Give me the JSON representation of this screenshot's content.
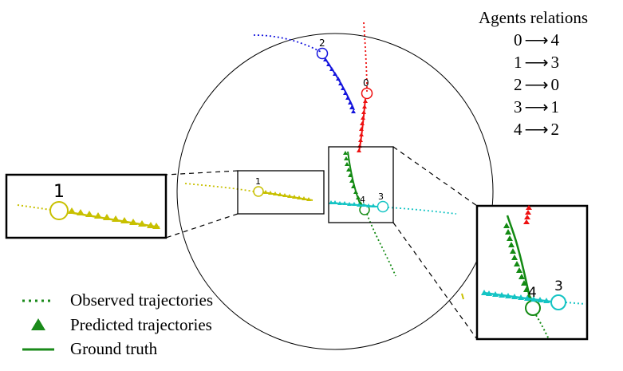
{
  "relations": {
    "title": "Agents relations",
    "arrow": "⟶",
    "pairs": [
      {
        "from": "0",
        "to": "4"
      },
      {
        "from": "1",
        "to": "3"
      },
      {
        "from": "2",
        "to": "0"
      },
      {
        "from": "3",
        "to": "1"
      },
      {
        "from": "4",
        "to": "2"
      }
    ]
  },
  "legend": {
    "observed": "Observed trajectories",
    "predicted": "Predicted trajectories",
    "ground_truth": "Ground truth"
  },
  "agents": {
    "a0": "0",
    "a1": "1",
    "a2": "2",
    "a3": "3",
    "a4": "4"
  },
  "insets": {
    "left_label": "1",
    "right_label_a": "4",
    "right_label_b": "3"
  },
  "colors": {
    "agent0": "#ee1111",
    "agent1": "#c8c000",
    "agent2": "#1515dd",
    "agent3": "#14c4c4",
    "agent4": "#138a13",
    "legend": "#1a8a1a"
  }
}
